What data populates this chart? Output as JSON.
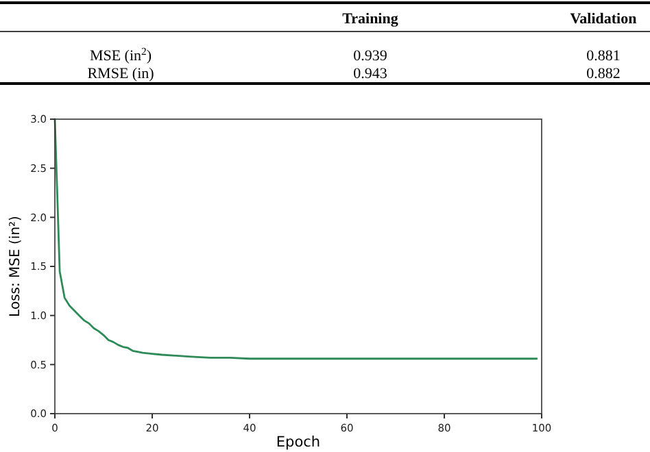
{
  "chart_data": [
    {
      "type": "other",
      "categories": [
        "Training",
        "Validation"
      ],
      "y_categories": [
        "MSE (in$^{2}$)",
        "RMSE (in)"
      ],
      "cell_labels": [
        [
          "0.939",
          "0.881"
        ],
        [
          "0.943",
          "0.882"
        ]
      ]
    },
    {
      "type": "line",
      "xlabel": "Epoch",
      "ylabel": "Loss: MSE (in²)",
      "xlim": [
        0,
        100
      ],
      "ylim": [
        0,
        3
      ],
      "xticks": [
        0,
        20,
        40,
        60,
        80,
        100
      ],
      "yticks": [
        {
          "value": 0,
          "label": "0.0"
        },
        {
          "value": 0.5,
          "label": "0.5"
        },
        {
          "value": 1,
          "label": "1.0"
        },
        {
          "value": 1.5,
          "label": "1.5"
        },
        {
          "value": 2,
          "label": "2.0"
        },
        {
          "value": 2.5,
          "label": "2.5"
        },
        {
          "value": 3,
          "label": "3.0"
        }
      ],
      "grid": false,
      "series": [
        {
          "color": "#2e8b57",
          "x": [
            0,
            1,
            2,
            3,
            4,
            5,
            6,
            7,
            8,
            9,
            10,
            11,
            12,
            13,
            14,
            15,
            16,
            17,
            18,
            20,
            22,
            25,
            28,
            32,
            36,
            40,
            50,
            60,
            80,
            99
          ],
          "values": [
            3.0,
            1.45,
            1.18,
            1.1,
            1.05,
            1.0,
            0.95,
            0.92,
            0.87,
            0.84,
            0.8,
            0.75,
            0.73,
            0.7,
            0.68,
            0.67,
            0.64,
            0.63,
            0.62,
            0.61,
            0.6,
            0.59,
            0.58,
            0.57,
            0.57,
            0.56,
            0.56,
            0.56,
            0.56,
            0.56
          ]
        }
      ]
    }
  ]
}
